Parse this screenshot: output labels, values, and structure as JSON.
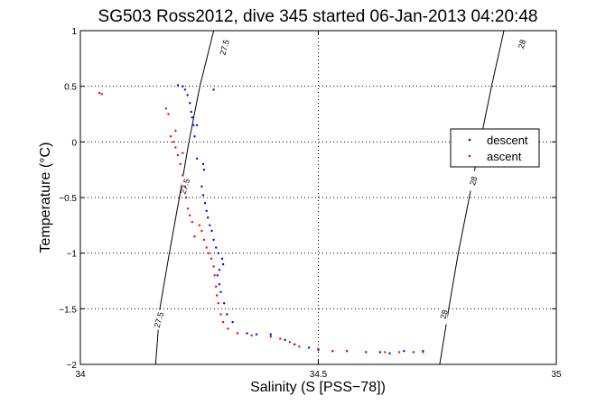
{
  "chart_data": {
    "type": "scatter",
    "title": "SG503 Ross2012, dive 345 started 06-Jan-2013 04:20:48",
    "xlabel": "Salinity (S [PSS−78])",
    "ylabel": "Temperature (°C)",
    "xlim": [
      34,
      35
    ],
    "ylim": [
      -2,
      1
    ],
    "xticks": [
      34,
      34.5,
      35
    ],
    "xtick_labels": [
      "34",
      "34.5",
      "35"
    ],
    "yticks": [
      -2,
      -1.5,
      -1,
      -0.5,
      0,
      0.5,
      1
    ],
    "ytick_labels": [
      "−2",
      "−1.5",
      "−1",
      "−0.5",
      "0",
      "0.5",
      "1"
    ],
    "grid": true,
    "legend_position": "right",
    "contours": [
      {
        "label": "27.5",
        "points": [
          [
            34.158,
            -2
          ],
          [
            34.167,
            -1.5
          ],
          [
            34.187,
            -1
          ],
          [
            34.208,
            -0.5
          ],
          [
            34.228,
            0
          ],
          [
            34.251,
            0.5
          ],
          [
            34.28,
            1
          ]
        ],
        "label_positions": [
          [
            34.165,
            -1.6
          ],
          [
            34.22,
            -0.4
          ],
          [
            34.303,
            0.85
          ]
        ]
      },
      {
        "label": "28",
        "points": [
          [
            34.755,
            -2
          ],
          [
            34.774,
            -1.5
          ],
          [
            34.794,
            -1
          ],
          [
            34.817,
            -0.5
          ],
          [
            34.84,
            0
          ],
          [
            34.864,
            0.5
          ],
          [
            34.89,
            1
          ]
        ],
        "label_positions": [
          [
            34.764,
            -1.55
          ],
          [
            34.826,
            -0.35
          ],
          [
            34.928,
            0.88
          ]
        ]
      }
    ],
    "series": [
      {
        "name": "descent",
        "color": "#0000ff",
        "points": [
          [
            34.205,
            0.51
          ],
          [
            34.215,
            0.5
          ],
          [
            34.22,
            0.47
          ],
          [
            34.225,
            0.42
          ],
          [
            34.23,
            0.35
          ],
          [
            34.233,
            0.27
          ],
          [
            34.235,
            0.22
          ],
          [
            34.238,
            0.15
          ],
          [
            34.245,
            0.15
          ],
          [
            34.24,
            0.05
          ],
          [
            34.245,
            -0.15
          ],
          [
            34.258,
            -0.2
          ],
          [
            34.26,
            -0.25
          ],
          [
            34.255,
            -0.4
          ],
          [
            34.258,
            -0.48
          ],
          [
            34.262,
            -0.55
          ],
          [
            34.265,
            -0.62
          ],
          [
            34.268,
            -0.68
          ],
          [
            34.272,
            -0.75
          ],
          [
            34.276,
            -0.8
          ],
          [
            34.28,
            -0.88
          ],
          [
            34.285,
            -0.95
          ],
          [
            34.29,
            -1.0
          ],
          [
            34.298,
            -1.05
          ],
          [
            34.3,
            -1.1
          ],
          [
            34.292,
            -1.15
          ],
          [
            34.288,
            -1.2
          ],
          [
            34.292,
            -1.28
          ],
          [
            34.295,
            -1.35
          ],
          [
            34.302,
            -1.45
          ],
          [
            34.308,
            -1.55
          ],
          [
            34.32,
            -1.62
          ],
          [
            34.35,
            -1.72
          ],
          [
            34.37,
            -1.73
          ],
          [
            34.4,
            -1.73
          ],
          [
            34.43,
            -1.78
          ],
          [
            34.45,
            -1.82
          ],
          [
            34.48,
            -1.85
          ],
          [
            34.5,
            -1.87
          ],
          [
            34.53,
            -1.88
          ],
          [
            34.56,
            -1.88
          ],
          [
            34.6,
            -1.89
          ],
          [
            34.63,
            -1.89
          ],
          [
            34.65,
            -1.9
          ],
          [
            34.68,
            -1.88
          ],
          [
            34.7,
            -1.89
          ],
          [
            34.72,
            -1.88
          ],
          [
            34.28,
            0.47
          ]
        ]
      },
      {
        "name": "ascent",
        "color": "#ff0000",
        "points": [
          [
            34.04,
            0.44
          ],
          [
            34.045,
            0.43
          ],
          [
            34.18,
            0.3
          ],
          [
            34.185,
            0.25
          ],
          [
            34.19,
            0.05
          ],
          [
            34.195,
            0.0
          ],
          [
            34.2,
            -0.05
          ],
          [
            34.205,
            -0.12
          ],
          [
            34.21,
            -0.2
          ],
          [
            34.215,
            -0.3
          ],
          [
            34.22,
            -0.4
          ],
          [
            34.222,
            -0.5
          ],
          [
            34.226,
            -0.6
          ],
          [
            34.23,
            -0.66
          ],
          [
            34.25,
            -0.75
          ],
          [
            34.255,
            -0.8
          ],
          [
            34.26,
            -0.88
          ],
          [
            34.265,
            -0.95
          ],
          [
            34.27,
            -1.0
          ],
          [
            34.275,
            -1.05
          ],
          [
            34.28,
            -1.12
          ],
          [
            34.282,
            -1.2
          ],
          [
            34.285,
            -1.3
          ],
          [
            34.287,
            -1.38
          ],
          [
            34.29,
            -1.45
          ],
          [
            34.295,
            -1.55
          ],
          [
            34.3,
            -1.62
          ],
          [
            34.31,
            -1.68
          ],
          [
            34.33,
            -1.72
          ],
          [
            34.36,
            -1.74
          ],
          [
            34.4,
            -1.75
          ],
          [
            34.42,
            -1.77
          ],
          [
            34.44,
            -1.8
          ],
          [
            34.46,
            -1.84
          ],
          [
            34.5,
            -1.86
          ],
          [
            34.53,
            -1.88
          ],
          [
            34.56,
            -1.88
          ],
          [
            34.6,
            -1.89
          ],
          [
            34.64,
            -1.89
          ],
          [
            34.67,
            -1.89
          ],
          [
            34.7,
            -1.89
          ],
          [
            34.72,
            -1.89
          ],
          [
            34.2,
            0.1
          ],
          [
            34.215,
            -0.1
          ],
          [
            34.235,
            -0.72
          ],
          [
            34.24,
            -0.85
          ]
        ]
      }
    ]
  }
}
